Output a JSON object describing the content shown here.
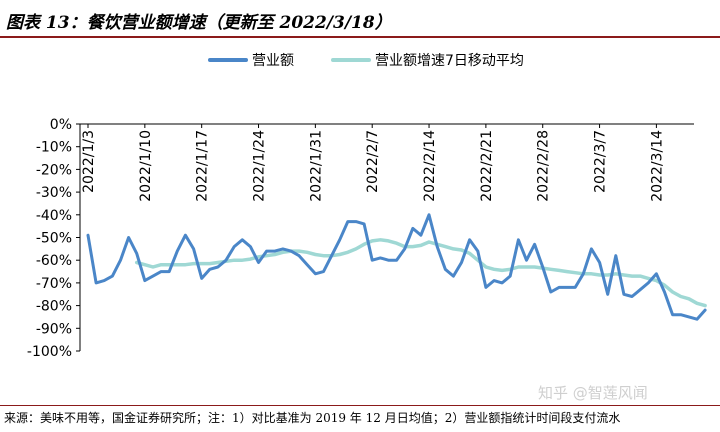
{
  "header": {
    "title": "图表 13：餐饮营业额增速（更新至 2022/3/18）"
  },
  "footer": {
    "source": "来源：美味不用等，国金证券研究所；注：1）对比基准为 2019 年 12 月日均值；2）营业额指统计时间段支付流水",
    "watermark": "知乎 @智莲风闻"
  },
  "chart_data": {
    "type": "line",
    "title": "",
    "xlabel": "",
    "ylabel": "",
    "ylim": [
      -100,
      0
    ],
    "y_ticks": [
      "0%",
      "-10%",
      "-20%",
      "-30%",
      "-40%",
      "-50%",
      "-60%",
      "-70%",
      "-80%",
      "-90%",
      "-100%"
    ],
    "x_ticks": [
      "2022/1/3",
      "2022/1/10",
      "2022/1/17",
      "2022/1/24",
      "2022/1/31",
      "2022/2/7",
      "2022/2/14",
      "2022/2/21",
      "2022/2/28",
      "2022/3/7",
      "2022/3/14"
    ],
    "x_start": "2022/1/3",
    "x_end": "2022/3/18",
    "legend_position": "top",
    "grid": false,
    "colors": {
      "revenue": "#4a86c8",
      "ma7": "#9fd8d4",
      "accent": "#8b1a1a"
    },
    "series": [
      {
        "name": "营业额",
        "values": [
          -49,
          -70,
          -69,
          -67,
          -60,
          -50,
          -57,
          -69,
          -67,
          -65,
          -65,
          -56,
          -49,
          -55,
          -68,
          -64,
          -63,
          -60,
          -54,
          -51,
          -54,
          -61,
          -56,
          -56,
          -55,
          -56,
          -58,
          -62,
          -66,
          -65,
          -58,
          -51,
          -43,
          -43,
          -44,
          -60,
          -59,
          -60,
          -60,
          -55,
          -46,
          -49,
          -40,
          -54,
          -64,
          -67,
          -61,
          -51,
          -56,
          -72,
          -69,
          -70,
          -67,
          -51,
          -60,
          -53,
          -63,
          -74,
          -72,
          -72,
          -72,
          -66,
          -55,
          -61,
          -75,
          -58,
          -75,
          -76,
          -73,
          -70,
          -66,
          -74,
          -84,
          -84,
          -85,
          -86,
          -82
        ]
      },
      {
        "name": "营业额增速7日移动平均",
        "values": [
          null,
          null,
          null,
          null,
          null,
          null,
          -61,
          -62,
          -63,
          -62,
          -62,
          -62,
          -62,
          -61.5,
          -61.5,
          -61.5,
          -61,
          -60.5,
          -60,
          -60,
          -59.5,
          -58.5,
          -58,
          -57.5,
          -56.5,
          -56,
          -56,
          -56.5,
          -57.5,
          -58,
          -58,
          -57.5,
          -56.5,
          -55,
          -53,
          -51.5,
          -51,
          -51.5,
          -52.5,
          -54,
          -54,
          -53.5,
          -52,
          -53,
          -54,
          -55,
          -55.5,
          -57,
          -60,
          -63,
          -64,
          -64.5,
          -64,
          -63,
          -63,
          -63,
          -63.5,
          -64,
          -64.5,
          -65,
          -65.5,
          -66,
          -66,
          -66.5,
          -66.5,
          -66,
          -66.5,
          -67,
          -67,
          -68,
          -69,
          -71,
          -74,
          -76,
          -77,
          -79,
          -80
        ]
      }
    ]
  }
}
